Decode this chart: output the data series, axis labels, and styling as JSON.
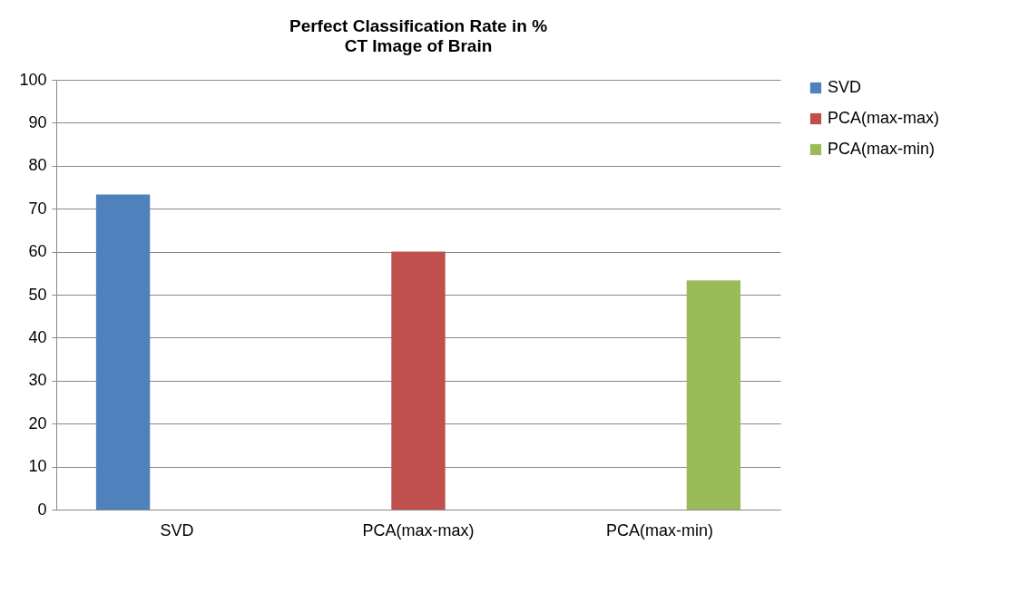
{
  "chart_data": {
    "type": "bar",
    "title": "Perfect Classification Rate in %",
    "subtitle": "CT Image of Brain",
    "categories": [
      "SVD",
      "PCA(max-max)",
      "PCA(max-min)"
    ],
    "series": [
      {
        "name": "SVD",
        "color": "#4f81bd",
        "values": [
          73.3,
          null,
          null
        ]
      },
      {
        "name": "PCA(max-max)",
        "color": "#c0504d",
        "values": [
          null,
          60,
          null
        ]
      },
      {
        "name": "PCA(max-min)",
        "color": "#9bbb59",
        "values": [
          null,
          null,
          53.3
        ]
      }
    ],
    "ylim": [
      0,
      100
    ],
    "yticks": [
      0,
      10,
      20,
      30,
      40,
      50,
      60,
      70,
      80,
      90,
      100
    ],
    "grid": "y",
    "legend": "right"
  }
}
